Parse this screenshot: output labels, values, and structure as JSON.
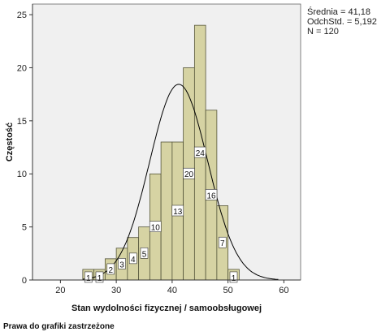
{
  "chart_data": {
    "type": "bar",
    "subtype": "histogram",
    "xlabel": "Stan wydolności fizycznej / samoobsługowej",
    "ylabel": "Częstość",
    "xlim": [
      15,
      63
    ],
    "ylim": [
      0,
      26
    ],
    "x_ticks": [
      20,
      30,
      40,
      50,
      60
    ],
    "y_ticks": [
      0,
      5,
      10,
      15,
      20,
      25
    ],
    "bin_width": 2,
    "bins": [
      {
        "start": 24,
        "end": 26,
        "value": 1
      },
      {
        "start": 26,
        "end": 28,
        "value": 1
      },
      {
        "start": 28,
        "end": 30,
        "value": 2
      },
      {
        "start": 30,
        "end": 32,
        "value": 3
      },
      {
        "start": 32,
        "end": 34,
        "value": 4
      },
      {
        "start": 34,
        "end": 36,
        "value": 5
      },
      {
        "start": 36,
        "end": 38,
        "value": 10
      },
      {
        "start": 38,
        "end": 40,
        "value": 13
      },
      {
        "start": 40,
        "end": 42,
        "value": 13
      },
      {
        "start": 42,
        "end": 44,
        "value": 20
      },
      {
        "start": 44,
        "end": 46,
        "value": 24
      },
      {
        "start": 46,
        "end": 48,
        "value": 16
      },
      {
        "start": 48,
        "end": 50,
        "value": 7
      },
      {
        "start": 50,
        "end": 52,
        "value": 1
      }
    ],
    "data_labels": [
      {
        "x": 25,
        "y": 1,
        "text": "1"
      },
      {
        "x": 27,
        "y": 1,
        "text": "1"
      },
      {
        "x": 29,
        "y": 2,
        "text": "2"
      },
      {
        "x": 31,
        "y": 3,
        "text": "3"
      },
      {
        "x": 33,
        "y": 4,
        "text": "4"
      },
      {
        "x": 35,
        "y": 5,
        "text": "5"
      },
      {
        "x": 37,
        "y": 10,
        "text": "10"
      },
      {
        "x": 41,
        "y": 13,
        "text": "13"
      },
      {
        "x": 43,
        "y": 20,
        "text": "20"
      },
      {
        "x": 45,
        "y": 24,
        "text": "24"
      },
      {
        "x": 47,
        "y": 16,
        "text": "16"
      },
      {
        "x": 49,
        "y": 7,
        "text": "7"
      },
      {
        "x": 51,
        "y": 1,
        "text": "1"
      }
    ],
    "normal_curve": {
      "mean": 41.18,
      "sd": 5.192,
      "n": 120
    },
    "grid": false,
    "colors": {
      "bar_fill": "#d6d3a3",
      "bar_stroke": "#55553a",
      "plot_bg": "#f0f0f0",
      "curve": "#000000"
    }
  },
  "stats": {
    "mean_line": "Średnia = 41,18",
    "sd_line": "OdchStd. = 5,192",
    "n_line": "N = 120"
  },
  "footer": "Prawa do grafiki zastrzeżone"
}
